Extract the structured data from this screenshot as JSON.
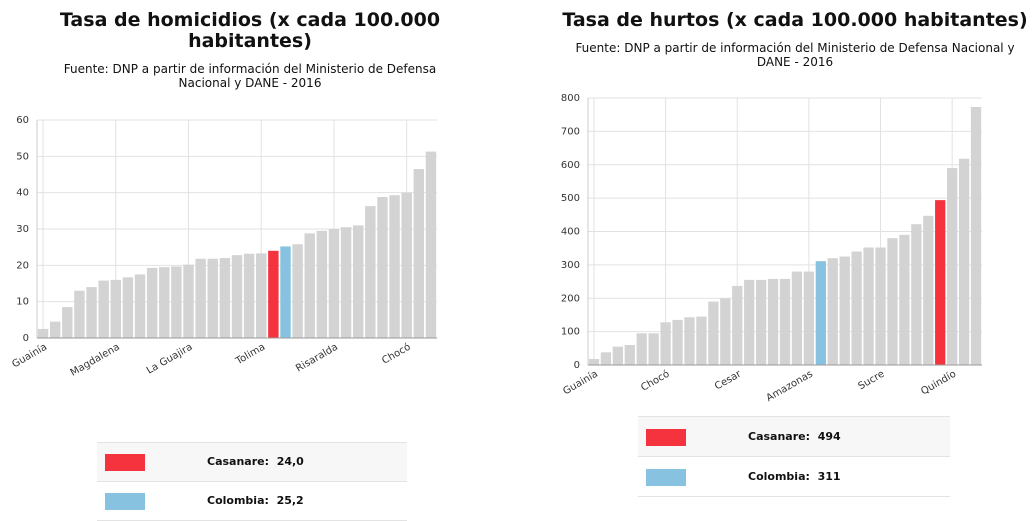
{
  "chart_data": [
    {
      "type": "bar",
      "title": "Tasa de homicidios (x cada 100.000 habitantes)",
      "subtitle": "Fuente: DNP a partir de información del Ministerio de Defensa Nacional y DANE - 2016",
      "categories": [
        "Guainía",
        null,
        null,
        null,
        null,
        null,
        "Magdalena",
        null,
        null,
        null,
        null,
        null,
        "La Guajira",
        null,
        null,
        null,
        null,
        null,
        "Tolima",
        null,
        null,
        null,
        null,
        null,
        "Risaralda",
        null,
        null,
        null,
        null,
        null,
        "Chocó",
        null,
        null
      ],
      "values": [
        2.5,
        4.5,
        8.5,
        13,
        14,
        15.8,
        16,
        16.7,
        17.5,
        19.3,
        19.5,
        19.7,
        20.2,
        21.8,
        21.8,
        22,
        22.8,
        23.2,
        23.3,
        24.0,
        25.2,
        25.8,
        28.8,
        29.5,
        30,
        30.5,
        31,
        36.3,
        38.8,
        39.3,
        40,
        46.5,
        51.3
      ],
      "colors": [
        "#d3d3d3",
        "#d3d3d3",
        "#d3d3d3",
        "#d3d3d3",
        "#d3d3d3",
        "#d3d3d3",
        "#d3d3d3",
        "#d3d3d3",
        "#d3d3d3",
        "#d3d3d3",
        "#d3d3d3",
        "#d3d3d3",
        "#d3d3d3",
        "#d3d3d3",
        "#d3d3d3",
        "#d3d3d3",
        "#d3d3d3",
        "#d3d3d3",
        "#d3d3d3",
        "#f5333f",
        "#87c3e1",
        "#d3d3d3",
        "#d3d3d3",
        "#d3d3d3",
        "#d3d3d3",
        "#d3d3d3",
        "#d3d3d3",
        "#d3d3d3",
        "#d3d3d3",
        "#d3d3d3",
        "#d3d3d3",
        "#d3d3d3",
        "#d3d3d3"
      ],
      "ylim": [
        0,
        60
      ],
      "yticks": [
        0,
        10,
        20,
        30,
        40,
        50,
        60
      ],
      "grid": true,
      "legend": [
        {
          "name": "Casanare:",
          "value": 24.0,
          "value_label": "24,0",
          "color": "#f5333f"
        },
        {
          "name": "Colombia:",
          "value": 25.2,
          "value_label": "25,2",
          "color": "#87c3e1"
        }
      ]
    },
    {
      "type": "bar",
      "title": "Tasa de hurtos (x cada 100.000 habitantes)",
      "subtitle": "Fuente: DNP a partir de información del Ministerio de Defensa Nacional y DANE - 2016",
      "categories": [
        "Guainía",
        null,
        null,
        null,
        null,
        null,
        "Chocó",
        null,
        null,
        null,
        null,
        null,
        "Cesar",
        null,
        null,
        null,
        null,
        null,
        "Amazonas",
        null,
        null,
        null,
        null,
        null,
        "Sucre",
        null,
        null,
        null,
        null,
        null,
        "Quindío",
        null,
        null
      ],
      "values": [
        18,
        38,
        55,
        60,
        95,
        95,
        128,
        135,
        143,
        145,
        190,
        200,
        237,
        255,
        255,
        258,
        258,
        280,
        280,
        311,
        320,
        325,
        340,
        352,
        352,
        380,
        390,
        422,
        447,
        494,
        590,
        618,
        773
      ],
      "colors": [
        "#d3d3d3",
        "#d3d3d3",
        "#d3d3d3",
        "#d3d3d3",
        "#d3d3d3",
        "#d3d3d3",
        "#d3d3d3",
        "#d3d3d3",
        "#d3d3d3",
        "#d3d3d3",
        "#d3d3d3",
        "#d3d3d3",
        "#d3d3d3",
        "#d3d3d3",
        "#d3d3d3",
        "#d3d3d3",
        "#d3d3d3",
        "#d3d3d3",
        "#d3d3d3",
        "#87c3e1",
        "#d3d3d3",
        "#d3d3d3",
        "#d3d3d3",
        "#d3d3d3",
        "#d3d3d3",
        "#d3d3d3",
        "#d3d3d3",
        "#d3d3d3",
        "#d3d3d3",
        "#f5333f",
        "#d3d3d3",
        "#d3d3d3",
        "#d3d3d3"
      ],
      "ylim": [
        0,
        800
      ],
      "yticks": [
        0,
        100,
        200,
        300,
        400,
        500,
        600,
        700,
        800
      ],
      "grid": true,
      "legend": [
        {
          "name": "Casanare:",
          "value": 494,
          "value_label": "494",
          "color": "#f5333f"
        },
        {
          "name": "Colombia:",
          "value": 311,
          "value_label": "311",
          "color": "#87c3e1"
        }
      ]
    }
  ]
}
